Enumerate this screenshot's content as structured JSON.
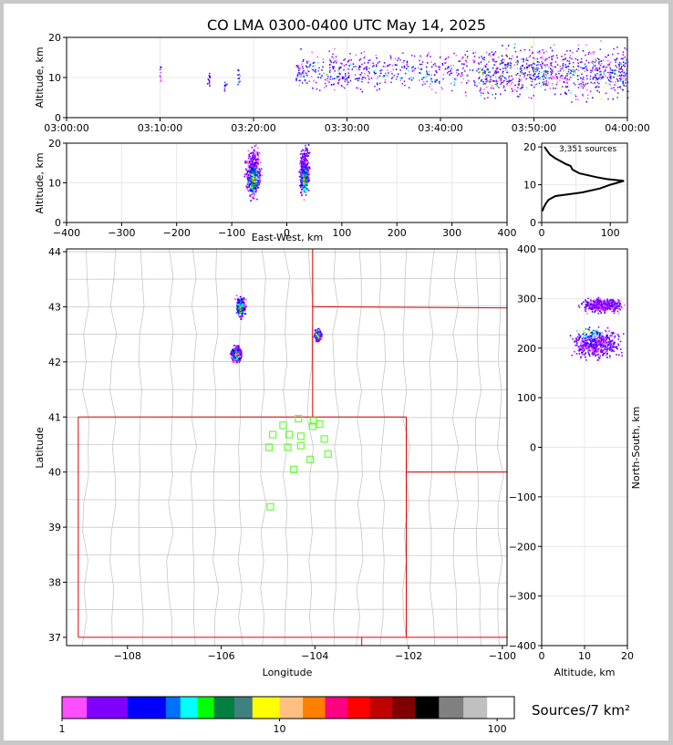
{
  "title": "CO LMA 0300-0400 UTC May 14, 2025",
  "colors": {
    "frame": "#c8c8c8",
    "state_border": "#e00000",
    "county": "#c0c0c0",
    "station": "#66ff33",
    "hist": "#000000"
  },
  "chart_data": [
    {
      "id": "time_height",
      "type": "scatter",
      "xlabel": "",
      "ylabel": "Altitude, km",
      "xticks": [
        "03:00:00",
        "03:10:00",
        "03:20:00",
        "03:30:00",
        "03:40:00",
        "03:50:00",
        "04:00:00"
      ],
      "xlim": [
        0,
        60
      ],
      "ylim": [
        0,
        20
      ],
      "yticks": [
        0,
        10,
        20
      ],
      "grid": true,
      "activity_bands": [
        {
          "t_start": 9.9,
          "t_end": 10.1,
          "alt_min": 8,
          "alt_max": 15,
          "density": 0.15
        },
        {
          "t_start": 15.0,
          "t_end": 15.3,
          "alt_min": 6,
          "alt_max": 14,
          "density": 0.2
        },
        {
          "t_start": 16.8,
          "t_end": 17.1,
          "alt_min": 6,
          "alt_max": 10,
          "density": 0.3
        },
        {
          "t_start": 18.2,
          "t_end": 18.5,
          "alt_min": 7,
          "alt_max": 14,
          "density": 0.3
        },
        {
          "t_start": 24.5,
          "t_end": 25.0,
          "alt_min": 6,
          "alt_max": 16,
          "density": 0.5
        },
        {
          "t_start": 25.0,
          "t_end": 34.0,
          "alt_min": 5,
          "alt_max": 18,
          "density": 0.45
        },
        {
          "t_start": 34.0,
          "t_end": 44.0,
          "alt_min": 5,
          "alt_max": 19,
          "density": 0.35
        },
        {
          "t_start": 44.0,
          "t_end": 60.0,
          "alt_min": 3,
          "alt_max": 20,
          "density": 0.9
        }
      ]
    },
    {
      "id": "east_west_height",
      "type": "scatter",
      "xlabel": "East-West, km",
      "ylabel": "Altitude, km",
      "xlim": [
        -400,
        400
      ],
      "xticks": [
        -400,
        -300,
        -200,
        -100,
        0,
        100,
        200,
        300,
        400
      ],
      "ylim": [
        0,
        20
      ],
      "yticks": [
        0,
        10,
        20
      ],
      "grid": true,
      "clusters": [
        {
          "x_min": -80,
          "x_max": -45,
          "alt_min": 4,
          "alt_max": 20
        },
        {
          "x_min": 20,
          "x_max": 42,
          "alt_min": 5,
          "alt_max": 20
        }
      ]
    },
    {
      "id": "altitude_histogram",
      "type": "line",
      "annotation": "3,351 sources",
      "xlim": [
        0,
        125
      ],
      "xticks": [
        0,
        100
      ],
      "ylim": [
        0,
        21
      ],
      "yticks": [
        0,
        10,
        20
      ],
      "profile": [
        {
          "alt": 3,
          "count": 1
        },
        {
          "alt": 4,
          "count": 3
        },
        {
          "alt": 5,
          "count": 6
        },
        {
          "alt": 6,
          "count": 10
        },
        {
          "alt": 7,
          "count": 20
        },
        {
          "alt": 8,
          "count": 60
        },
        {
          "alt": 9,
          "count": 85
        },
        {
          "alt": 10,
          "count": 100
        },
        {
          "alt": 10.5,
          "count": 110
        },
        {
          "alt": 11,
          "count": 120
        },
        {
          "alt": 11.5,
          "count": 95
        },
        {
          "alt": 12,
          "count": 80
        },
        {
          "alt": 13,
          "count": 55
        },
        {
          "alt": 14,
          "count": 45
        },
        {
          "alt": 15,
          "count": 42
        },
        {
          "alt": 15.5,
          "count": 35
        },
        {
          "alt": 16,
          "count": 30
        },
        {
          "alt": 17,
          "count": 20
        },
        {
          "alt": 18,
          "count": 12
        },
        {
          "alt": 19,
          "count": 8
        },
        {
          "alt": 20,
          "count": 4
        }
      ]
    },
    {
      "id": "plan_view",
      "type": "scatter",
      "xlabel": "Longitude",
      "ylabel": "Latitude",
      "xlim": [
        -109.3,
        -99.9
      ],
      "ylim": [
        36.85,
        44.05
      ],
      "xticks": [
        -108,
        -106,
        -104,
        -102,
        -100
      ],
      "xtick_labels": [
        "−108",
        "−106",
        "−104",
        "−102",
        "−100"
      ],
      "yticks": [
        37,
        38,
        39,
        40,
        41,
        42,
        43,
        44
      ],
      "clusters": [
        {
          "lon_min": -105.75,
          "lon_max": -105.45,
          "lat_min": 42.75,
          "lat_max": 43.25
        },
        {
          "lon_min": -104.05,
          "lon_max": -103.85,
          "lat_min": 42.35,
          "lat_max": 42.65
        },
        {
          "lon_min": -105.85,
          "lon_max": -105.55,
          "lat_min": 41.95,
          "lat_max": 42.35
        }
      ],
      "stations": [
        [
          -104.35,
          40.97
        ],
        [
          -104.03,
          40.93
        ],
        [
          -104.05,
          40.83
        ],
        [
          -103.9,
          40.87
        ],
        [
          -104.68,
          40.85
        ],
        [
          -104.9,
          40.68
        ],
        [
          -104.55,
          40.68
        ],
        [
          -104.3,
          40.65
        ],
        [
          -103.8,
          40.6
        ],
        [
          -104.98,
          40.45
        ],
        [
          -104.58,
          40.45
        ],
        [
          -104.3,
          40.48
        ],
        [
          -103.72,
          40.33
        ],
        [
          -104.1,
          40.23
        ],
        [
          -104.45,
          40.05
        ],
        [
          -104.95,
          39.37
        ]
      ]
    },
    {
      "id": "north_south_height",
      "type": "scatter",
      "xlabel": "Altitude, km",
      "ylabel": "North-South, km",
      "xlim": [
        0,
        20
      ],
      "xticks": [
        0,
        10,
        20
      ],
      "ylim": [
        -400,
        400
      ],
      "yticks": [
        -400,
        -300,
        -200,
        -100,
        0,
        100,
        200,
        300,
        400
      ],
      "yticklabels": [
        "−400",
        "−300",
        "−200",
        "−100",
        "0",
        "100",
        "200",
        "300",
        "400"
      ],
      "clusters": [
        {
          "alt_min": 8,
          "alt_max": 20,
          "ns_min": 270,
          "ns_max": 305
        },
        {
          "alt_min": 5,
          "alt_max": 20,
          "ns_min": 170,
          "ns_max": 250
        }
      ]
    }
  ],
  "colorbar": {
    "label": "Sources/7 km²",
    "ticks": [
      "1",
      "10",
      "100"
    ],
    "colors": [
      "#ff4dff",
      "#8000ff",
      "#0000ff",
      "#0070ff",
      "#00ffff",
      "#00ff00",
      "#008040",
      "#408080",
      "#ffff00",
      "#ffc080",
      "#ff8000",
      "#ff0080",
      "#ff0000",
      "#c00000",
      "#800000",
      "#000000",
      "#808080",
      "#c0c0c0",
      "#ffffff"
    ],
    "bounds": [
      1.0,
      1.3,
      2.0,
      3.0,
      3.5,
      4.2,
      5.0,
      6.2,
      7.5,
      10.0,
      12.8,
      16.2,
      20.5,
      26.0,
      33.0,
      42.0,
      54.0,
      70.0,
      90.0,
      120.0
    ]
  }
}
